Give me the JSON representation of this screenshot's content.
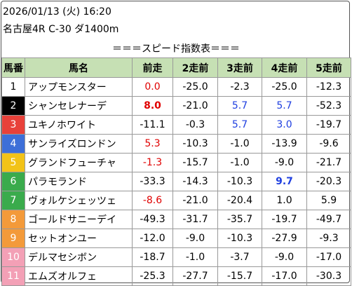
{
  "header": {
    "datetime": "2026/01/13 (火) 16:20",
    "race": "名古屋4R C-30 ダ1400m"
  },
  "table": {
    "title": "＝＝＝スピード指数表＝＝＝",
    "columns": [
      "馬番",
      "馬名",
      "前走",
      "2走前",
      "3走前",
      "4走前",
      "5走前"
    ],
    "rows": [
      {
        "no": "1",
        "waku_color": "#ffffff",
        "no_text_color": "#000000",
        "name": "アップモンスター",
        "values": [
          "0.0",
          "-25.0",
          "-2.3",
          "-25.0",
          "-12.3"
        ],
        "styles": [
          "red",
          null,
          null,
          null,
          null
        ]
      },
      {
        "no": "2",
        "waku_color": "#000000",
        "no_text_color": "#ffffff",
        "name": "シャンセレナーデ",
        "values": [
          "8.0",
          "-21.0",
          "5.7",
          "5.7",
          "-52.3"
        ],
        "styles": [
          "red-bold",
          null,
          "blue",
          "blue",
          null
        ]
      },
      {
        "no": "3",
        "waku_color": "#e8413a",
        "no_text_color": "#ffffff",
        "name": "ユキノホワイト",
        "values": [
          "-11.1",
          "-0.3",
          "5.7",
          "3.0",
          "-19.7"
        ],
        "styles": [
          null,
          null,
          "blue",
          "blue",
          null
        ]
      },
      {
        "no": "4",
        "waku_color": "#3d6fd8",
        "no_text_color": "#ffffff",
        "name": "サンライズロンドン",
        "values": [
          "5.3",
          "-10.3",
          "-1.0",
          "-13.9",
          "-9.6"
        ],
        "styles": [
          "red",
          null,
          null,
          null,
          null
        ]
      },
      {
        "no": "5",
        "waku_color": "#f2c318",
        "no_text_color": "#ffffff",
        "name": "グランドフューチャ",
        "values": [
          "-1.3",
          "-15.7",
          "-1.0",
          "-9.0",
          "-21.7"
        ],
        "styles": [
          "red",
          null,
          null,
          null,
          null
        ]
      },
      {
        "no": "6",
        "waku_color": "#3aab4c",
        "no_text_color": "#ffffff",
        "name": "パラモランド",
        "values": [
          "-33.3",
          "-14.3",
          "-10.3",
          "9.7",
          "-20.3"
        ],
        "styles": [
          null,
          null,
          null,
          "blue-bold",
          null
        ]
      },
      {
        "no": "7",
        "waku_color": "#3aab4c",
        "no_text_color": "#ffffff",
        "name": "ヴォルケシェッツェ",
        "values": [
          "-8.6",
          "-21.0",
          "-20.4",
          "1.0",
          "5.9"
        ],
        "styles": [
          "red",
          null,
          null,
          null,
          null
        ]
      },
      {
        "no": "8",
        "waku_color": "#f39a3a",
        "no_text_color": "#ffffff",
        "name": "ゴールドサニーデイ",
        "values": [
          "-49.3",
          "-31.7",
          "-35.7",
          "-19.7",
          "-49.7"
        ],
        "styles": [
          null,
          null,
          null,
          null,
          null
        ]
      },
      {
        "no": "9",
        "waku_color": "#f39a3a",
        "no_text_color": "#ffffff",
        "name": "セットオンユー",
        "values": [
          "-12.0",
          "-9.0",
          "-10.3",
          "-27.9",
          "-9.3"
        ],
        "styles": [
          null,
          null,
          null,
          null,
          null
        ]
      },
      {
        "no": "10",
        "waku_color": "#f3a0b6",
        "no_text_color": "#ffffff",
        "name": "デルマセシボン",
        "values": [
          "-18.7",
          "-1.0",
          "-3.7",
          "-9.0",
          "-17.0"
        ],
        "styles": [
          null,
          null,
          null,
          null,
          null
        ]
      },
      {
        "no": "11",
        "waku_color": "#f3a0b6",
        "no_text_color": "#ffffff",
        "name": "エムズオルフェ",
        "values": [
          "-25.3",
          "-27.7",
          "-15.7",
          "-17.0",
          "-30.3"
        ],
        "styles": [
          null,
          null,
          null,
          null,
          null
        ]
      }
    ]
  }
}
